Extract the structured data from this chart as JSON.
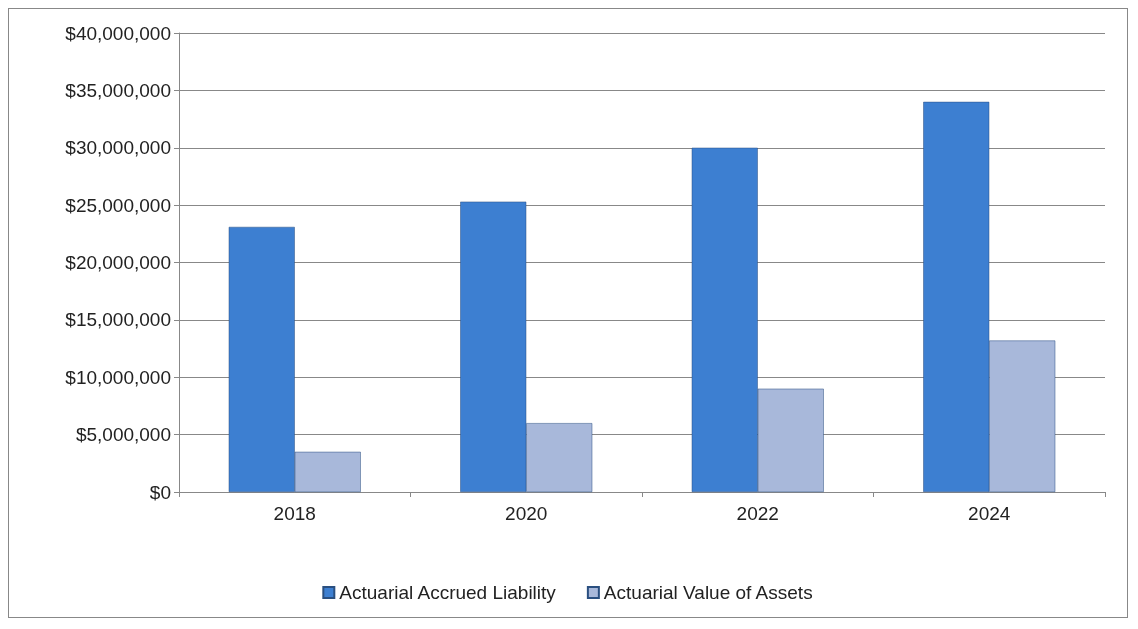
{
  "chart_data": {
    "type": "bar",
    "categories": [
      "2018",
      "2020",
      "2022",
      "2024"
    ],
    "series": [
      {
        "name": "Actuarial Accrued Liability",
        "color": "#3d7fd1",
        "values": [
          23100000,
          25300000,
          30000000,
          34000000
        ]
      },
      {
        "name": "Actuarial Value of Assets",
        "color": "#a8b8da",
        "values": [
          3500000,
          6000000,
          9000000,
          13200000
        ]
      }
    ],
    "ylim": [
      0,
      40000000
    ],
    "yticks": [
      {
        "value": 0,
        "label": "$0"
      },
      {
        "value": 5000000,
        "label": "$5,000,000"
      },
      {
        "value": 10000000,
        "label": "$10,000,000"
      },
      {
        "value": 15000000,
        "label": "$15,000,000"
      },
      {
        "value": 20000000,
        "label": "$20,000,000"
      },
      {
        "value": 25000000,
        "label": "$25,000,000"
      },
      {
        "value": 30000000,
        "label": "$30,000,000"
      },
      {
        "value": 35000000,
        "label": "$35,000,000"
      },
      {
        "value": 40000000,
        "label": "$40,000,000"
      }
    ],
    "grid": "y",
    "legend": "bottom"
  }
}
